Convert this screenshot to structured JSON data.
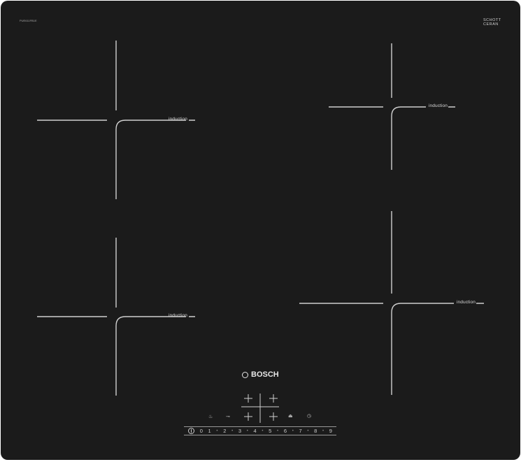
{
  "product": {
    "brand": "BOSCH",
    "model_label": "PUE611FB1E",
    "glass_brand": [
      "SCHOTT",
      "CERAN"
    ]
  },
  "zones": [
    {
      "id": "front-left",
      "label": "induction"
    },
    {
      "id": "rear-left",
      "label": "induction"
    },
    {
      "id": "rear-right",
      "label": "induction"
    },
    {
      "id": "front-right",
      "label": "induction"
    }
  ],
  "controls": {
    "icons": [
      "boost-flame-icon",
      "child-lock-key-icon",
      "power-management-icon",
      "timer-icon"
    ],
    "slider_levels": [
      "0",
      "1",
      "2",
      "3",
      "4",
      "5",
      "6",
      "7",
      "8",
      "9"
    ]
  },
  "colors": {
    "glass": "#1b1b1b",
    "markings": "#cfcfcf"
  }
}
